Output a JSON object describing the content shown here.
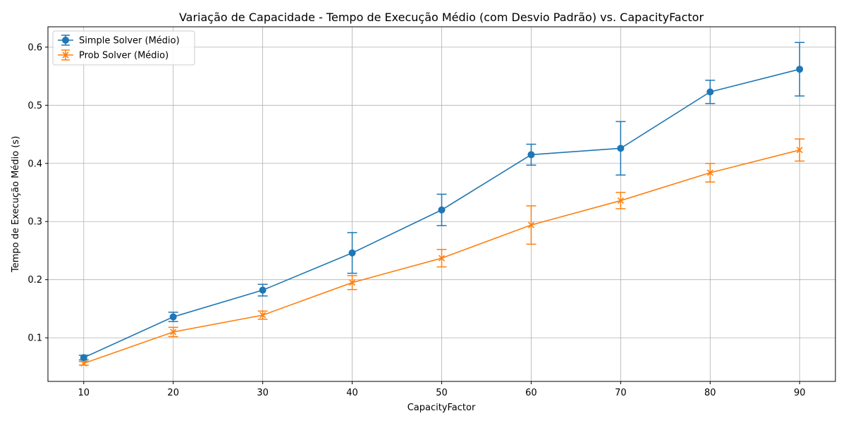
{
  "chart_data": {
    "type": "line",
    "title": "Variação de Capacidade - Tempo de Execução Médio (com Desvio Padrão) vs. CapacityFactor",
    "xlabel": "CapacityFactor",
    "ylabel": "Tempo de Execução Médio (s)",
    "x": [
      10,
      20,
      30,
      40,
      50,
      60,
      70,
      80,
      90
    ],
    "xlim": [
      6,
      94
    ],
    "ylim": [
      0.025,
      0.635
    ],
    "xticks": [
      "10",
      "20",
      "30",
      "40",
      "50",
      "60",
      "70",
      "80",
      "90"
    ],
    "yticks": [
      "0.1",
      "0.2",
      "0.3",
      "0.4",
      "0.5",
      "0.6"
    ],
    "ytick_values": [
      0.1,
      0.2,
      0.3,
      0.4,
      0.5,
      0.6
    ],
    "grid": true,
    "legend_position": "top-left",
    "series": [
      {
        "name": "Simple Solver (Médio)",
        "color": "#1f77b4",
        "marker": "circle",
        "values": [
          0.066,
          0.136,
          0.182,
          0.246,
          0.32,
          0.415,
          0.426,
          0.523,
          0.562
        ],
        "errors": [
          0.004,
          0.008,
          0.01,
          0.035,
          0.027,
          0.018,
          0.046,
          0.02,
          0.046
        ]
      },
      {
        "name": "Prob Solver (Médio)",
        "color": "#ff7f0e",
        "marker": "x",
        "values": [
          0.056,
          0.11,
          0.139,
          0.195,
          0.237,
          0.294,
          0.336,
          0.384,
          0.423
        ],
        "errors": [
          0.003,
          0.008,
          0.007,
          0.012,
          0.015,
          0.033,
          0.014,
          0.016,
          0.019
        ]
      }
    ]
  }
}
